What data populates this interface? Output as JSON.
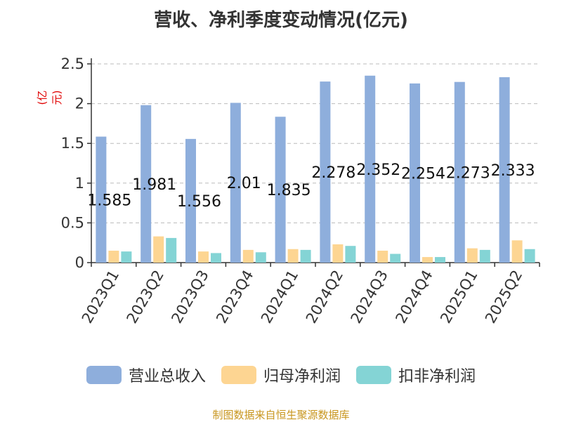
{
  "colors": {
    "revenue": "#8eaedc",
    "net_profit": "#fdd592",
    "deducted_profit": "#84d4d5",
    "axis": "#333333",
    "grid": "#bbbbbb"
  },
  "source_note": "制图数据来自恒生聚源数据库",
  "chart_data": {
    "type": "bar",
    "title": "营收、净利季度变动情况(亿元)",
    "ylabel": "(亿元)",
    "xlabel": "",
    "ylim": [
      0,
      2.5
    ],
    "yticks": [
      "0",
      "0.5",
      "1",
      "1.5",
      "2",
      "2.5"
    ],
    "ytick_values": [
      0,
      0.5,
      1,
      1.5,
      2,
      2.5
    ],
    "grid": true,
    "legend_position": "bottom",
    "categories": [
      "2023Q1",
      "2023Q2",
      "2023Q3",
      "2023Q4",
      "2024Q1",
      "2024Q2",
      "2024Q3",
      "2024Q4",
      "2025Q1",
      "2025Q2"
    ],
    "series": [
      {
        "name": "营业总收入",
        "values": [
          1.585,
          1.981,
          1.556,
          2.01,
          1.835,
          2.278,
          2.352,
          2.254,
          2.273,
          2.333
        ]
      },
      {
        "name": "归母净利润",
        "values": [
          0.15,
          0.33,
          0.14,
          0.16,
          0.17,
          0.23,
          0.15,
          0.07,
          0.18,
          0.28
        ]
      },
      {
        "name": "扣非净利润",
        "values": [
          0.14,
          0.31,
          0.12,
          0.13,
          0.16,
          0.21,
          0.11,
          0.07,
          0.16,
          0.17
        ]
      }
    ],
    "data_labels": [
      "1.585",
      "1.981",
      "1.556",
      "2.01",
      "1.835",
      "2.278",
      "2.352",
      "2.254",
      "2.273",
      "2.333"
    ]
  }
}
